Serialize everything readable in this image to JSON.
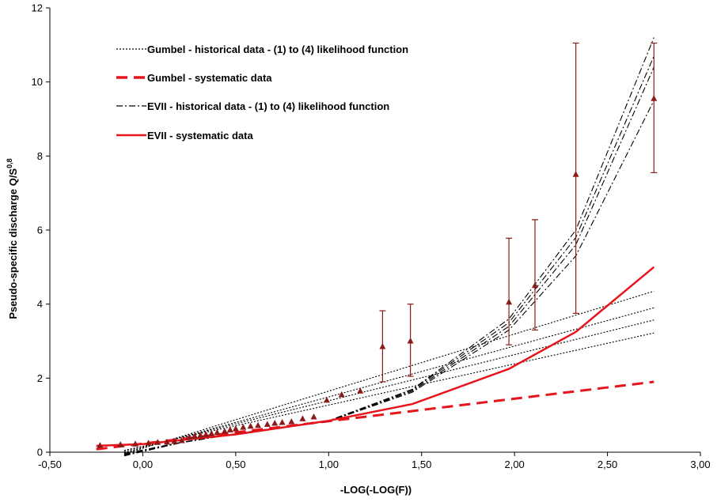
{
  "chart_data": {
    "type": "line",
    "xlabel": "-LOG(-LOG(F))",
    "ylabel_main": "Pseudo-specific discharge Q/S",
    "ylabel_sup": "0,8",
    "xlim": [
      -0.5,
      3.0
    ],
    "ylim": [
      0,
      12
    ],
    "x_ticks": [
      "-0,50",
      "0,00",
      "0,50",
      "1,00",
      "1,50",
      "2,00",
      "2,50",
      "3,00"
    ],
    "y_ticks": [
      "0",
      "2",
      "4",
      "6",
      "8",
      "10",
      "12"
    ],
    "grid": false,
    "legend_position": "top-left",
    "colors": {
      "red": "#e8141b",
      "darkred": "#8b1a1a",
      "black": "#000000"
    },
    "legend": [
      {
        "label": "Gumbel - historical data - (1) to (4) likelihood function",
        "style": "dotted-black"
      },
      {
        "label": "Gumbel - systematic data",
        "style": "dashed-red"
      },
      {
        "label": "EVII - historical data - (1) to (4) likelihood function",
        "style": "dashdot-black"
      },
      {
        "label": "EVII - systematic data",
        "style": "solid-red"
      }
    ],
    "series": [
      {
        "key": "gumbel_hist_1",
        "style": "dotted-black",
        "x": [
          -0.1,
          2.75
        ],
        "y": [
          -0.05,
          4.35
        ]
      },
      {
        "key": "gumbel_hist_2",
        "style": "dotted-black",
        "x": [
          -0.1,
          2.75
        ],
        "y": [
          -0.02,
          3.9
        ]
      },
      {
        "key": "gumbel_hist_3",
        "style": "dotted-black",
        "x": [
          -0.1,
          2.75
        ],
        "y": [
          0.02,
          3.57
        ]
      },
      {
        "key": "gumbel_hist_4",
        "style": "dotted-black",
        "x": [
          -0.1,
          2.75
        ],
        "y": [
          0.05,
          3.22
        ]
      },
      {
        "key": "gumbel_syst",
        "style": "dashed-red",
        "x": [
          -0.25,
          2.75
        ],
        "y": [
          0.08,
          1.9
        ]
      },
      {
        "key": "evii_hist_1",
        "style": "dashdot-black",
        "x": [
          -0.1,
          0.2,
          0.5,
          1.0,
          1.45,
          1.97,
          2.33,
          2.75
        ],
        "y": [
          -0.1,
          0.25,
          0.5,
          0.85,
          1.7,
          3.6,
          6.0,
          11.2
        ]
      },
      {
        "key": "evii_hist_2",
        "style": "dashdot-black",
        "x": [
          -0.1,
          0.2,
          0.5,
          1.0,
          1.45,
          1.97,
          2.33,
          2.75
        ],
        "y": [
          -0.08,
          0.25,
          0.5,
          0.85,
          1.68,
          3.5,
          5.8,
          10.7
        ]
      },
      {
        "key": "evii_hist_3",
        "style": "dashdot-black",
        "x": [
          -0.1,
          0.2,
          0.5,
          1.0,
          1.45,
          1.97,
          2.33,
          2.75
        ],
        "y": [
          -0.06,
          0.26,
          0.5,
          0.84,
          1.65,
          3.4,
          5.6,
          10.4
        ]
      },
      {
        "key": "evii_hist_4",
        "style": "dashdot-black",
        "x": [
          -0.1,
          0.2,
          0.5,
          1.0,
          1.45,
          1.97,
          2.33,
          2.75
        ],
        "y": [
          -0.04,
          0.26,
          0.5,
          0.83,
          1.62,
          3.3,
          5.3,
          9.5
        ]
      },
      {
        "key": "evii_syst",
        "style": "solid-red",
        "x": [
          -0.25,
          0.0,
          0.5,
          1.0,
          1.45,
          1.97,
          2.33,
          2.75
        ],
        "y": [
          0.17,
          0.22,
          0.48,
          0.85,
          1.3,
          2.25,
          3.25,
          5.0
        ]
      }
    ],
    "observations": {
      "color": "#8b1a1a",
      "x": [
        -0.23,
        -0.12,
        -0.04,
        0.03,
        0.08,
        0.13,
        0.17,
        0.21,
        0.25,
        0.28,
        0.31,
        0.34,
        0.37,
        0.4,
        0.44,
        0.47,
        0.5,
        0.54,
        0.58,
        0.62,
        0.67,
        0.71,
        0.75,
        0.8,
        0.86,
        0.92,
        0.99,
        1.07,
        1.17,
        1.29,
        1.44,
        1.97,
        2.11,
        2.33,
        2.75
      ],
      "y": [
        0.18,
        0.2,
        0.22,
        0.24,
        0.26,
        0.27,
        0.29,
        0.31,
        0.4,
        0.43,
        0.45,
        0.47,
        0.5,
        0.53,
        0.56,
        0.6,
        0.63,
        0.67,
        0.7,
        0.72,
        0.75,
        0.78,
        0.8,
        0.82,
        0.9,
        0.95,
        1.4,
        1.55,
        1.65,
        2.85,
        3.0,
        4.05,
        4.5,
        7.5,
        9.55
      ]
    },
    "error_bars": [
      {
        "x": 1.29,
        "low": 1.9,
        "high": 3.82
      },
      {
        "x": 1.44,
        "low": 2.05,
        "high": 4.0
      },
      {
        "x": 1.97,
        "low": 2.9,
        "high": 5.78
      },
      {
        "x": 2.11,
        "low": 3.3,
        "high": 6.28
      },
      {
        "x": 2.33,
        "low": 3.75,
        "high": 11.05
      },
      {
        "x": 2.75,
        "low": 7.55,
        "high": 11.05
      }
    ]
  }
}
